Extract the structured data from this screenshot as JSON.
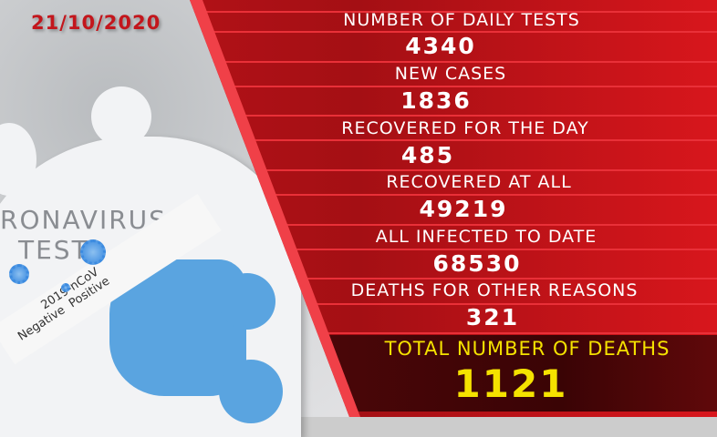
{
  "date": "21/10/2020",
  "photo": {
    "heading_line1": "RONAVIRUS",
    "heading_line2": "TEST",
    "tube_label": "2019-nCoV",
    "negative": "Negative",
    "positive": "Positive"
  },
  "stats": [
    {
      "label": "NUMBER OF DAILY TESTS",
      "value": "4340"
    },
    {
      "label": "NEW CASES",
      "value": "1836"
    },
    {
      "label": "RECOVERED FOR THE DAY",
      "value": "485"
    },
    {
      "label": "RECOVERED AT ALL",
      "value": "49219"
    },
    {
      "label": "ALL INFECTED TO DATE",
      "value": "68530"
    },
    {
      "label": "DEATHS FOR OTHER REASONS",
      "value": "321"
    }
  ],
  "total_deaths": {
    "label": "TOTAL NUMBER OF DEATHS",
    "value": "1121"
  },
  "colors": {
    "red": "#c0141a",
    "yellow": "#f5e200",
    "date": "#c3161c"
  }
}
